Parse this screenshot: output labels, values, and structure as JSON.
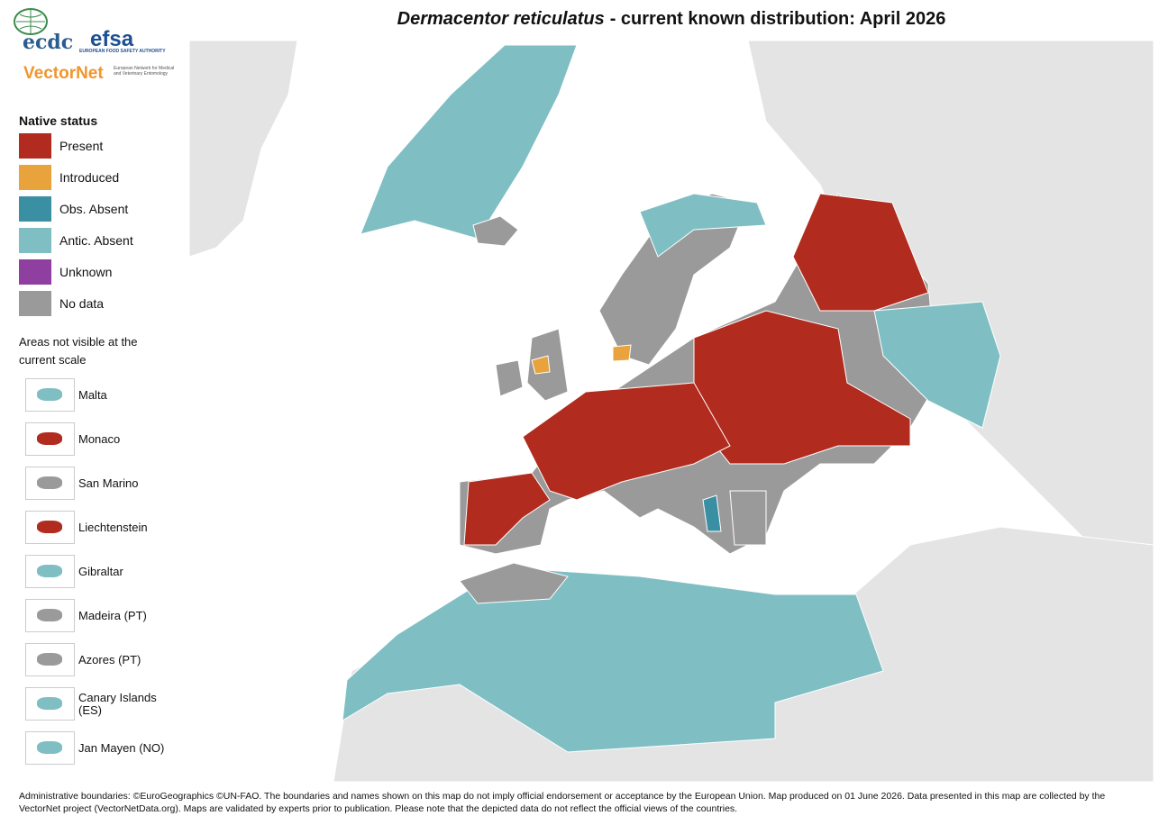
{
  "header": {
    "title_species": "Dermacentor reticulatus",
    "title_rest": "- current known distribution: April 2026"
  },
  "logos": {
    "ecdc": "ecdc",
    "efsa": "efsa",
    "efsa_sub": "EUROPEAN FOOD SAFETY AUTHORITY",
    "vectornet": "VectorNet",
    "vectornet_sub": "European Network for Medical and Veterinary Entomology"
  },
  "legend": {
    "title": "Native status",
    "items": [
      {
        "label": "Present",
        "color": "#b22b1f"
      },
      {
        "label": "Introduced",
        "color": "#e8a33c"
      },
      {
        "label": "Obs. Absent",
        "color": "#3a8fa3"
      },
      {
        "label": "Antic. Absent",
        "color": "#7fbfc4"
      },
      {
        "label": "Unknown",
        "color": "#8e3fa0"
      },
      {
        "label": "No data",
        "color": "#9a9a9a"
      }
    ]
  },
  "insets": {
    "title": "Areas not visible at the current scale",
    "items": [
      {
        "label": "Malta",
        "color": "#7fbfc4"
      },
      {
        "label": "Monaco",
        "color": "#b22b1f"
      },
      {
        "label": "San Marino",
        "color": "#9a9a9a"
      },
      {
        "label": "Liechtenstein",
        "color": "#b22b1f"
      },
      {
        "label": "Gibraltar",
        "color": "#7fbfc4"
      },
      {
        "label": "Madeira (PT)",
        "color": "#9a9a9a"
      },
      {
        "label": "Azores (PT)",
        "color": "#9a9a9a"
      },
      {
        "label": "Canary Islands (ES)",
        "color": "#7fbfc4"
      },
      {
        "label": "Jan Mayen (NO)",
        "color": "#7fbfc4"
      }
    ]
  },
  "footer": "Administrative boundaries: ©EuroGeographics ©UN-FAO. The boundaries and names shown on this map do not imply official endorsement or acceptance by the European Union. Map produced on 01 June 2026. Data presented in this map are collected by the VectorNet project (VectorNetData.org). Maps are validated by experts prior to publication. Please note that the depicted data do not reflect the official views of the countries."
}
